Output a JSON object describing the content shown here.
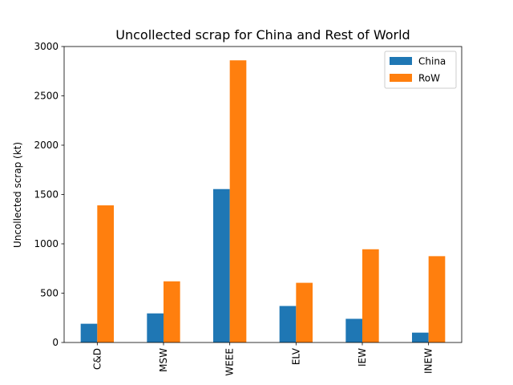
{
  "chart_data": {
    "type": "bar",
    "title": "Uncollected scrap for China and Rest of World",
    "xlabel": "",
    "ylabel": "Uncollected scrap (kt)",
    "categories": [
      "C&D",
      "MSW",
      "WEEE",
      "ELV",
      "IEW",
      "INEW"
    ],
    "series": [
      {
        "name": "China",
        "color": "#1f77b4",
        "values": [
          190,
          295,
          1555,
          370,
          240,
          100
        ]
      },
      {
        "name": "RoW",
        "color": "#ff7f0e",
        "values": [
          1390,
          620,
          2860,
          605,
          945,
          875
        ]
      }
    ],
    "ylim": [
      0,
      3000
    ],
    "yticks": [
      0,
      500,
      1000,
      1500,
      2000,
      2500,
      3000
    ],
    "grid": false,
    "legend_position": "top-right"
  }
}
